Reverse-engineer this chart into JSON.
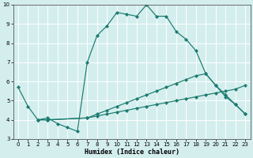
{
  "xlabel": "Humidex (Indice chaleur)",
  "xlim": [
    -0.5,
    23.5
  ],
  "ylim": [
    3,
    10
  ],
  "yticks": [
    3,
    4,
    5,
    6,
    7,
    8,
    9,
    10
  ],
  "xticks": [
    0,
    1,
    2,
    3,
    4,
    5,
    6,
    7,
    8,
    9,
    10,
    11,
    12,
    13,
    14,
    15,
    16,
    17,
    18,
    19,
    20,
    21,
    22,
    23
  ],
  "bg_color": "#d4eeee",
  "grid_color": "#b8d8d8",
  "line_color": "#1a7a6e",
  "series": [
    {
      "x": [
        0,
        1,
        2,
        3,
        4,
        5,
        6,
        7,
        8,
        9,
        10,
        11,
        12,
        13,
        14,
        15,
        16,
        17,
        18,
        19,
        20,
        21,
        22,
        23
      ],
      "y": [
        5.7,
        4.7,
        4.0,
        4.1,
        3.8,
        3.6,
        3.4,
        7.0,
        8.4,
        8.9,
        9.6,
        9.5,
        9.4,
        10.0,
        9.4,
        9.4,
        8.6,
        8.2,
        7.6,
        6.4,
        5.8,
        5.2,
        4.8,
        4.3
      ]
    },
    {
      "x": [
        2,
        3,
        7,
        8,
        9,
        10,
        11,
        12,
        13,
        14,
        15,
        16,
        17,
        18,
        19,
        20,
        21,
        22,
        23
      ],
      "y": [
        4.0,
        4.0,
        4.1,
        4.3,
        4.5,
        4.7,
        4.9,
        5.1,
        5.3,
        5.5,
        5.7,
        5.9,
        6.1,
        6.3,
        6.4,
        5.8,
        5.3,
        4.8,
        4.3
      ]
    },
    {
      "x": [
        2,
        3,
        7,
        8,
        9,
        10,
        11,
        12,
        13,
        14,
        15,
        16,
        17,
        18,
        19,
        20,
        21,
        22,
        23
      ],
      "y": [
        4.0,
        4.0,
        4.1,
        4.2,
        4.3,
        4.4,
        4.5,
        4.6,
        4.7,
        4.8,
        4.9,
        5.0,
        5.1,
        5.2,
        5.3,
        5.4,
        5.5,
        5.6,
        5.8
      ]
    }
  ]
}
